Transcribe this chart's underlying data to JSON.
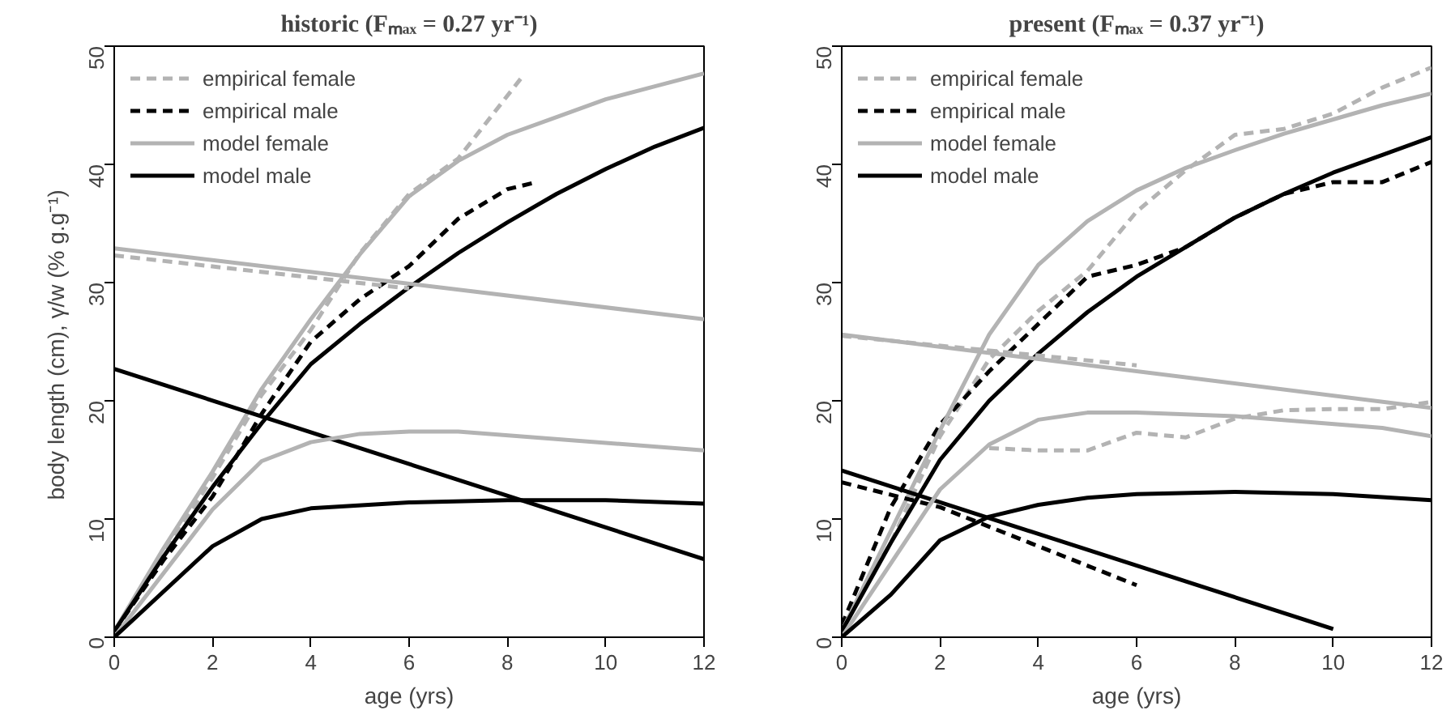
{
  "chart_data": [
    {
      "type": "line",
      "title": "historic (Fₘₐₓ = 0.27 yr⁻¹)",
      "xlabel": "age (yrs)",
      "ylabel": "body length (cm),  γ/w (% g.g⁻¹)",
      "xlim": [
        0,
        12
      ],
      "ylim": [
        0,
        50
      ],
      "xticks": [
        0,
        2,
        4,
        6,
        8,
        10,
        12
      ],
      "yticks": [
        0,
        10,
        20,
        30,
        40,
        50
      ],
      "grid": false,
      "legend": "top left",
      "series": [
        {
          "x": [
            0,
            1,
            2,
            3,
            4,
            5,
            6,
            7,
            8.3
          ],
          "values": [
            0.5,
            7,
            13.5,
            20.5,
            26,
            32.5,
            37.5,
            40.5,
            47.4
          ],
          "color": "#b3b3b3",
          "line_style": "dashed",
          "name": "empirical female"
        },
        {
          "x": [
            0,
            1,
            2,
            3,
            4,
            5,
            6,
            7,
            8,
            8.6
          ],
          "values": [
            0.5,
            6.5,
            11.9,
            18.9,
            25,
            28.6,
            31.4,
            35.4,
            37.9,
            38.5
          ],
          "color": "#000000",
          "line_style": "dashed",
          "name": "empirical male"
        },
        {
          "x": [
            0,
            1,
            2,
            3,
            4,
            5,
            6,
            7,
            8,
            9,
            10,
            11,
            12
          ],
          "values": [
            0.5,
            7.5,
            14,
            21,
            26.9,
            32.4,
            37.3,
            40.3,
            42.5,
            44,
            45.5,
            46.6,
            47.7
          ],
          "color": "#b3b3b3",
          "line_style": "solid",
          "name": "model female"
        },
        {
          "x": [
            0,
            1,
            2,
            3,
            4,
            5,
            6,
            7,
            8,
            9,
            10,
            11,
            12
          ],
          "values": [
            0.5,
            6.8,
            12.7,
            18.1,
            23.1,
            26.5,
            29.6,
            32.5,
            35.1,
            37.5,
            39.6,
            41.5,
            43.1
          ],
          "color": "#000000",
          "line_style": "solid",
          "name": "model male"
        },
        {
          "x": [
            0,
            12
          ],
          "values": [
            32.9,
            26.9
          ],
          "color": "#b3b3b3",
          "line_style": "solid"
        },
        {
          "x": [
            0,
            6
          ],
          "values": [
            32.3,
            29.5
          ],
          "color": "#b3b3b3",
          "line_style": "dashed"
        },
        {
          "x": [
            0,
            12
          ],
          "values": [
            22.7,
            6.6
          ],
          "color": "#000000",
          "line_style": "solid"
        },
        {
          "x": [
            0,
            2,
            3,
            4,
            5,
            6,
            7,
            12
          ],
          "values": [
            0,
            10.8,
            14.9,
            16.5,
            17.2,
            17.4,
            17.4,
            15.8
          ],
          "color": "#b3b3b3",
          "line_style": "solid"
        },
        {
          "x": [
            0,
            2,
            3,
            4,
            6,
            8,
            10,
            12
          ],
          "values": [
            0,
            7.7,
            10,
            10.9,
            11.4,
            11.6,
            11.6,
            11.3
          ],
          "color": "#000000",
          "line_style": "solid"
        }
      ]
    },
    {
      "type": "line",
      "title": "present (Fₘₐₓ = 0.37 yr⁻¹)",
      "xlabel": "age (yrs)",
      "xlim": [
        0,
        12
      ],
      "ylim": [
        0,
        50
      ],
      "xticks": [
        0,
        2,
        4,
        6,
        8,
        10,
        12
      ],
      "yticks": [
        0,
        10,
        20,
        30,
        40,
        50
      ],
      "grid": false,
      "legend": "top left",
      "series": [
        {
          "x": [
            0,
            1,
            2,
            3,
            4,
            5,
            6,
            7,
            8,
            9,
            10,
            11,
            12
          ],
          "values": [
            1,
            8,
            17,
            23.5,
            27.6,
            31,
            36,
            39.5,
            42.5,
            43,
            44.3,
            46.5,
            48.2
          ],
          "color": "#b3b3b3",
          "line_style": "dashed",
          "name": "empirical female"
        },
        {
          "x": [
            0,
            1,
            2,
            3,
            4,
            5,
            6,
            7,
            8,
            9,
            10,
            11,
            12
          ],
          "values": [
            1,
            11,
            18,
            22.5,
            26.5,
            30.5,
            31.5,
            33,
            35.5,
            37.5,
            38.5,
            38.5,
            40.2
          ],
          "color": "#000000",
          "line_style": "dashed",
          "name": "empirical male"
        },
        {
          "x": [
            0,
            1,
            2,
            3,
            4,
            5,
            6,
            7,
            8,
            9,
            10,
            11,
            12
          ],
          "values": [
            0.5,
            9,
            17.5,
            25.6,
            31.5,
            35.2,
            37.8,
            39.7,
            41.2,
            42.6,
            43.8,
            45,
            46
          ],
          "color": "#b3b3b3",
          "line_style": "solid",
          "name": "model female"
        },
        {
          "x": [
            0,
            1,
            2,
            3,
            4,
            5,
            6,
            7,
            8,
            9,
            10,
            11,
            12
          ],
          "values": [
            0.5,
            8,
            15,
            20,
            24,
            27.5,
            30.5,
            33,
            35.5,
            37.5,
            39.3,
            40.8,
            42.3
          ],
          "color": "#000000",
          "line_style": "solid",
          "name": "model male"
        },
        {
          "x": [
            0,
            12
          ],
          "values": [
            25.6,
            19.4
          ],
          "color": "#b3b3b3",
          "line_style": "solid"
        },
        {
          "x": [
            0,
            6
          ],
          "values": [
            25.5,
            23
          ],
          "color": "#b3b3b3",
          "line_style": "dashed"
        },
        {
          "x": [
            0,
            10
          ],
          "values": [
            14.1,
            0.7
          ],
          "color": "#000000",
          "line_style": "solid"
        },
        {
          "x": [
            0,
            2,
            4,
            6
          ],
          "values": [
            13.1,
            11,
            7.7,
            4.4
          ],
          "color": "#000000",
          "line_style": "dashed"
        },
        {
          "x": [
            0,
            2,
            3,
            4,
            5,
            6,
            8,
            11,
            12
          ],
          "values": [
            0,
            12.5,
            16.3,
            18.4,
            19,
            19,
            18.7,
            17.7,
            17
          ],
          "color": "#b3b3b3",
          "line_style": "solid"
        },
        {
          "x": [
            3,
            4,
            5,
            6,
            7,
            8,
            9,
            10,
            11,
            12
          ],
          "values": [
            16,
            15.8,
            15.8,
            17.3,
            16.9,
            18.5,
            19.2,
            19.3,
            19.3,
            19.9
          ],
          "color": "#b3b3b3",
          "line_style": "dashed"
        },
        {
          "x": [
            0,
            1,
            2,
            3,
            4,
            5,
            6,
            8,
            10,
            12
          ],
          "values": [
            0,
            3.6,
            8.2,
            10.2,
            11.2,
            11.8,
            12.1,
            12.3,
            12.1,
            11.6
          ],
          "color": "#000000",
          "line_style": "solid"
        }
      ]
    }
  ]
}
